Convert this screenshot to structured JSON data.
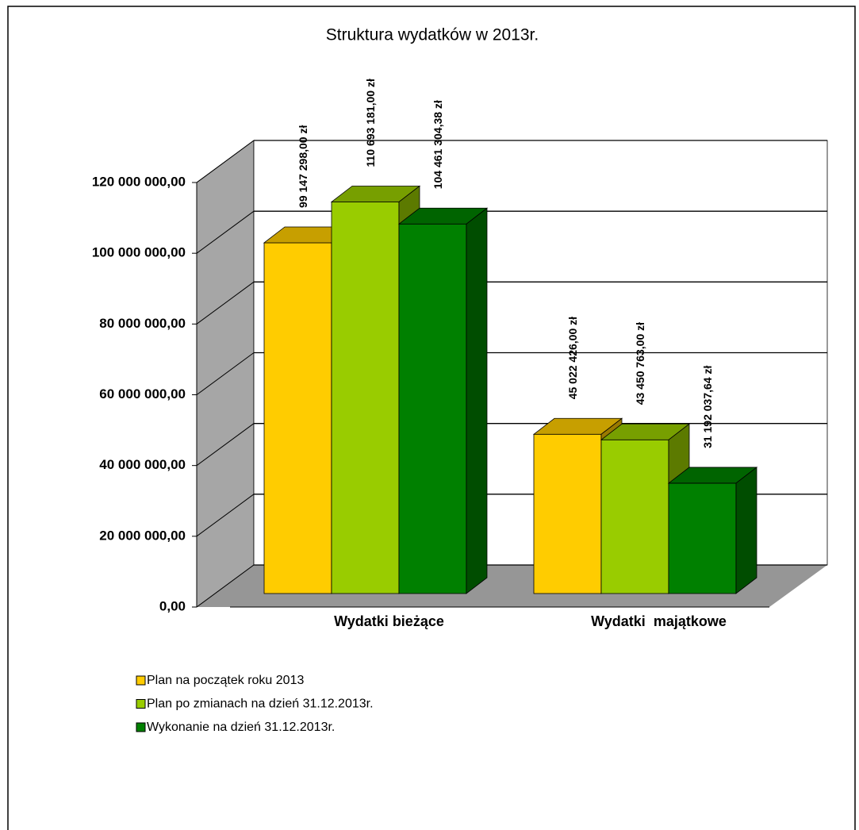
{
  "chart_data": {
    "type": "bar3d",
    "title": "Struktura wydatków w 2013r.",
    "categories": [
      "Wydatki bieżące",
      "Wydatki  majątkowe"
    ],
    "series": [
      {
        "name": "Plan na początek roku 2013",
        "color": "#ffcc00",
        "values": [
          99147298.0,
          45022426.0
        ],
        "value_labels": [
          "99 147 298,00 zł",
          "45 022 426,00 zł"
        ]
      },
      {
        "name": "Plan po zmianach na dzień 31.12.2013r.",
        "color": "#99cc00",
        "values": [
          110693181.0,
          43450763.0
        ],
        "value_labels": [
          "110 693 181,00 zł",
          "43 450 763,00 zł"
        ]
      },
      {
        "name": "Wykonanie na dzień 31.12.2013r.",
        "color": "#008000",
        "values": [
          104461304.38,
          31192037.64
        ],
        "value_labels": [
          "104 461 304,38 zł",
          "31 192 037,64 zł"
        ]
      }
    ],
    "ylim": [
      0,
      120000000
    ],
    "yticks": [
      {
        "value": 0,
        "label": "0,00"
      },
      {
        "value": 20000000,
        "label": "20 000 000,00"
      },
      {
        "value": 40000000,
        "label": "40 000 000,00"
      },
      {
        "value": 60000000,
        "label": "60 000 000,00"
      },
      {
        "value": 80000000,
        "label": "80 000 000,00"
      },
      {
        "value": 100000000,
        "label": "100 000 000,00"
      },
      {
        "value": 120000000,
        "label": "120 000 000,00"
      }
    ],
    "grid": true
  }
}
